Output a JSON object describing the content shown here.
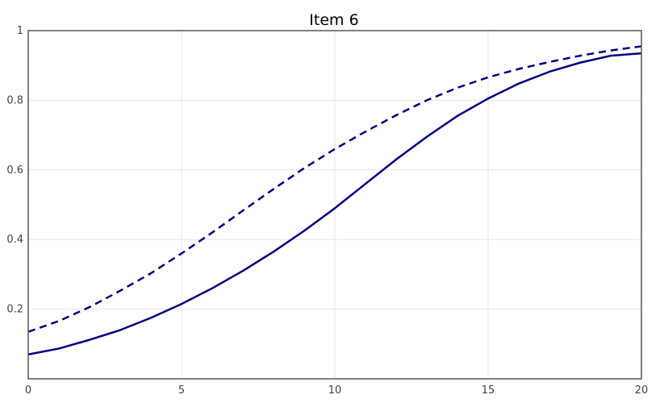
{
  "chart_data": {
    "type": "line",
    "title": "Item  6",
    "xlabel": "",
    "ylabel": "",
    "xlim": [
      0,
      20
    ],
    "ylim": [
      0.0,
      1.0
    ],
    "grid": true,
    "x_ticks": [
      0,
      5,
      10,
      15,
      20
    ],
    "y_ticks": [
      0.2,
      0.4,
      0.6,
      0.8,
      1
    ],
    "x_tick_labels": [
      "0",
      "5",
      "10",
      "15",
      "20"
    ],
    "y_tick_labels": [
      "0.2",
      "0.4",
      "0.6",
      "0.8",
      "1"
    ],
    "x": [
      0,
      1,
      2,
      3,
      4,
      5,
      6,
      7,
      8,
      9,
      10,
      11,
      12,
      13,
      14,
      15,
      16,
      17,
      18,
      19,
      20
    ],
    "series": [
      {
        "style": "dashed",
        "color": "#000080",
        "values": [
          0.135,
          0.166,
          0.206,
          0.253,
          0.303,
          0.36,
          0.42,
          0.483,
          0.545,
          0.605,
          0.66,
          0.71,
          0.757,
          0.8,
          0.836,
          0.866,
          0.89,
          0.91,
          0.928,
          0.943,
          0.955
        ]
      },
      {
        "style": "solid",
        "color": "#000080",
        "values": [
          0.07,
          0.087,
          0.112,
          0.14,
          0.175,
          0.215,
          0.26,
          0.31,
          0.365,
          0.425,
          0.49,
          0.56,
          0.63,
          0.695,
          0.755,
          0.805,
          0.848,
          0.882,
          0.908,
          0.928,
          0.935
        ]
      }
    ]
  }
}
